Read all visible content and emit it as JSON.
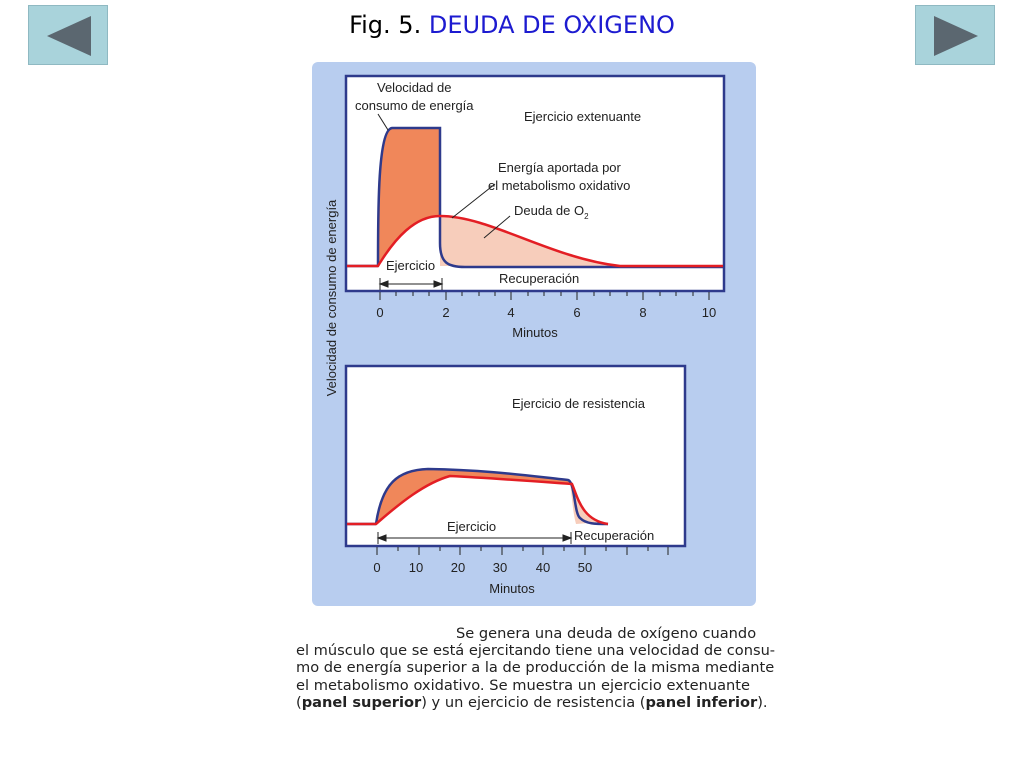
{
  "nav": {
    "prev_icon": "triangle-left-icon",
    "next_icon": "triangle-right-icon"
  },
  "title": {
    "fig": "Fig. 5.",
    "main": "DEUDA DE OXIGENO"
  },
  "figure": {
    "y_axis_label": "Velocidad de consumo de energía",
    "top": {
      "label_rate": [
        "Velocidad de",
        "consumo de energía"
      ],
      "label_type": "Ejercicio extenuante",
      "label_oxidative": [
        "Energía aportada por",
        "el metabolismo oxidativo"
      ],
      "label_debt": "Deuda de O",
      "label_debt_sub": "2",
      "label_exercise": "Ejercicio",
      "label_recovery": "Recuperación",
      "x_ticks": [
        "0",
        "2",
        "4",
        "6",
        "8",
        "10"
      ],
      "x_label": "Minutos"
    },
    "bottom": {
      "label_type": "Ejercicio de resistencia",
      "label_exercise": "Ejercicio",
      "label_recovery": "Recuperación",
      "x_ticks": [
        "0",
        "10",
        "20",
        "30",
        "40",
        "50"
      ],
      "x_label": "Minutos"
    },
    "colors": {
      "panel_bg": "#b8cdef",
      "demand": "#2e3a8c",
      "oxidative": "#e31e24",
      "fill_dark": "#f0875a",
      "fill_light": "#f7cdbb"
    }
  },
  "caption": {
    "line1": "Se genera una deuda de oxígeno cuando",
    "line2": "el músculo que se está ejercitando tiene una velocidad de consu-",
    "line3": "mo de energía superior a la de producción de la misma mediante",
    "line4": "el metabolismo oxidativo. Se muestra un ejercicio extenuante",
    "line5_a": "(",
    "line5_b": "panel superior",
    "line5_c": ") y un ejercicio de resistencia (",
    "line5_d": "panel inferior",
    "line5_e": ")."
  }
}
